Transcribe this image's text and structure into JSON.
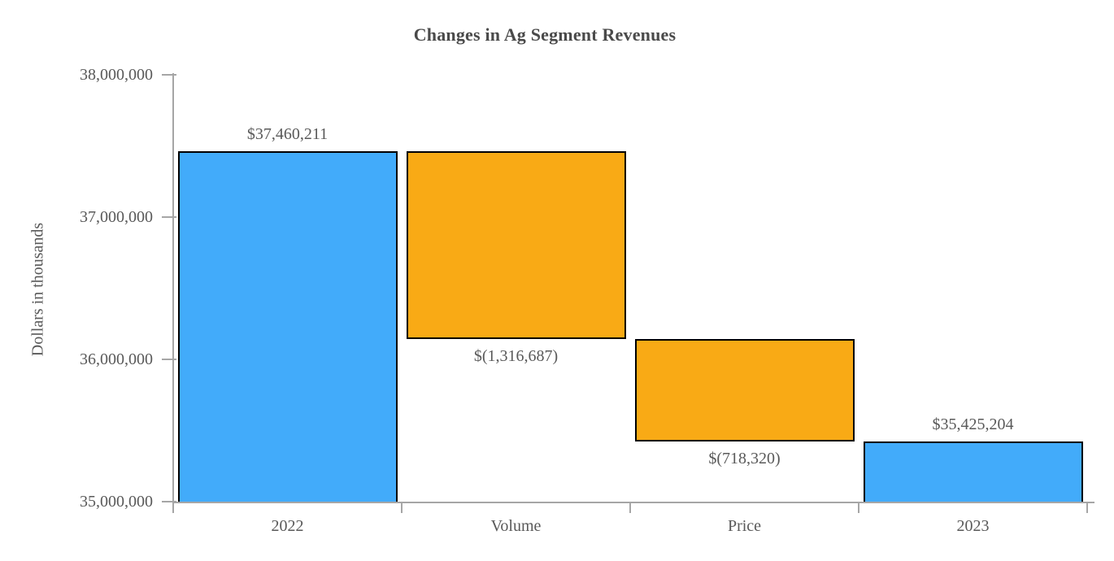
{
  "chart_data": {
    "type": "bar",
    "subtype": "waterfall",
    "title": "Changes in Ag Segment Revenues",
    "xlabel": "",
    "ylabel": "Dollars in thousands",
    "categories": [
      "2022",
      "Volume",
      "Price",
      "2023"
    ],
    "bars": [
      {
        "category": "2022",
        "label": "$37,460,211",
        "start": 35000000,
        "end": 37460211,
        "value": 37460211,
        "color": "blue",
        "label_position": "above"
      },
      {
        "category": "Volume",
        "label": "$(1,316,687)",
        "start": 36143524,
        "end": 37460211,
        "value": -1316687,
        "color": "orange",
        "label_position": "below"
      },
      {
        "category": "Price",
        "label": "$(718,320)",
        "start": 35425204,
        "end": 36143524,
        "value": -718320,
        "color": "orange",
        "label_position": "below"
      },
      {
        "category": "2023",
        "label": "$35,425,204",
        "start": 35000000,
        "end": 35425204,
        "value": 35425204,
        "color": "blue",
        "label_position": "above"
      }
    ],
    "y_axis": {
      "min": 35000000,
      "max": 38000000,
      "tick_step": 1000000,
      "tick_labels": [
        "35,000,000",
        "36,000,000",
        "37,000,000",
        "38,000,000"
      ]
    },
    "grid": false,
    "legend": null,
    "colors": {
      "blue": "#42ABFA",
      "orange": "#F9AA15",
      "bar_border": "#000000",
      "axis": "#A6A6A6",
      "text": "#595959",
      "title_text": "#4A4A4A"
    }
  }
}
